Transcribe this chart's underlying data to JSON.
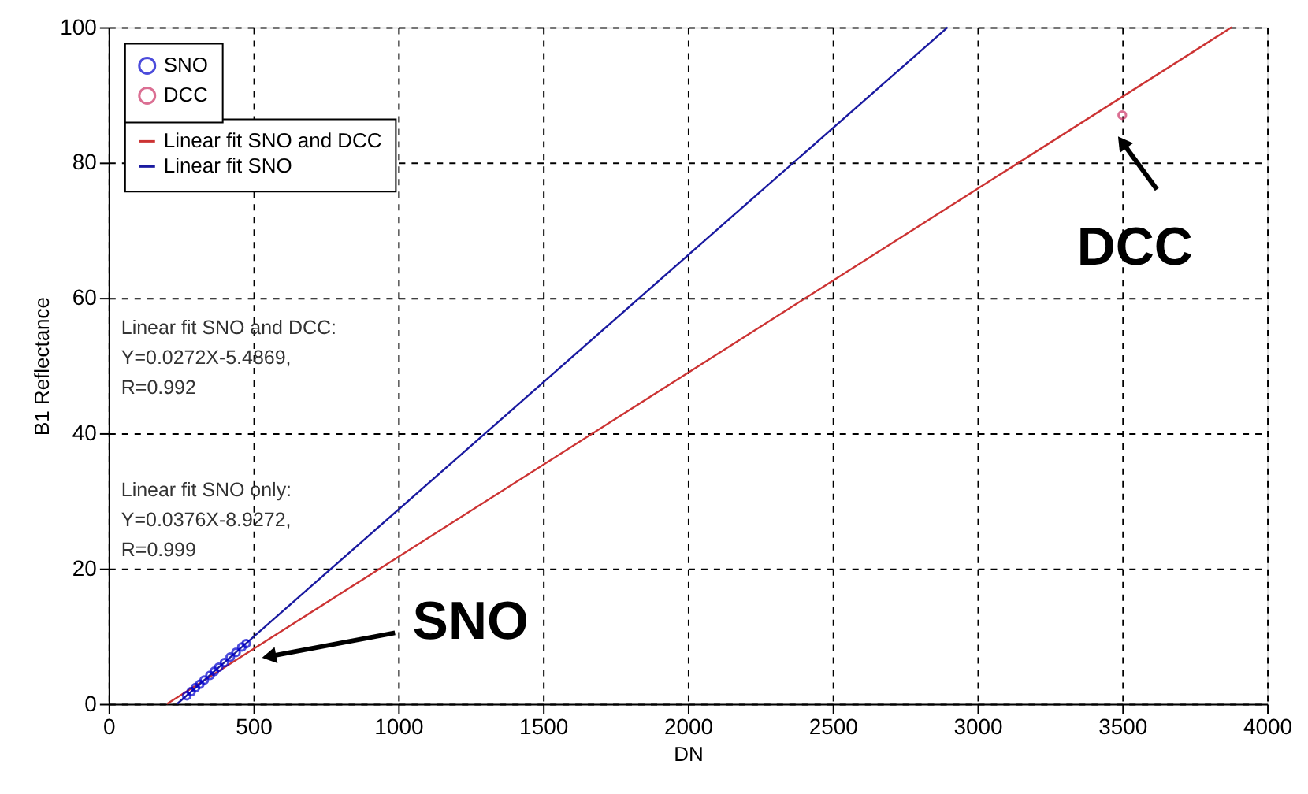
{
  "chart_data": {
    "type": "scatter",
    "xlabel": "DN",
    "ylabel": "B1 Reflectance",
    "xlim": [
      0,
      4000
    ],
    "ylim": [
      0,
      100
    ],
    "xticks": [
      0,
      500,
      {
        "value": 1000,
        "label": "1000"
      },
      {
        "value": 1500,
        "label": "1500"
      },
      {
        "value": 2000,
        "label": "2000"
      },
      {
        "value": 2500,
        "label": "2500"
      },
      {
        "value": 3000,
        "label": "3000"
      },
      {
        "value": 3500,
        "label": "3500"
      },
      {
        "value": 4000,
        "label": "4000"
      }
    ],
    "yticks": [
      0,
      20,
      40,
      60,
      80,
      100
    ],
    "grid": true,
    "legend": "top left",
    "series": [
      {
        "name": "SNO",
        "marker": "circle",
        "color": "#0000cc",
        "x": [
          270,
          285,
          300,
          315,
          330,
          350,
          365,
          380,
          400,
          420,
          440,
          460,
          475
        ],
        "values": [
          1.2,
          1.8,
          2.4,
          2.9,
          3.5,
          4.2,
          4.8,
          5.4,
          6.1,
          6.9,
          7.6,
          8.4,
          8.9
        ]
      },
      {
        "name": "DCC",
        "marker": "circle",
        "color": "#cc3366",
        "x": [
          3500
        ],
        "values": [
          87
        ]
      },
      {
        "name": "Linear fit SNO and DCC",
        "type": "line",
        "color": "#cc3333",
        "x": [
          202,
          3878
        ],
        "values": [
          0,
          100
        ]
      },
      {
        "name": "Linear fit SNO",
        "type": "line",
        "color": "#1a1aa0",
        "x": [
          237,
          2897
        ],
        "values": [
          0,
          100
        ]
      }
    ],
    "annotations": [
      "Linear fit SNO and DCC:\nY=0.0272X-5.4869,\nR=0.992",
      "Linear fit SNO only:\nY=0.0376X-8.9272,\nR=0.999",
      {
        "text": "SNO",
        "x": 554,
        "y": 7
      },
      {
        "text": "DCC",
        "x": 3500,
        "y": 83
      }
    ]
  }
}
